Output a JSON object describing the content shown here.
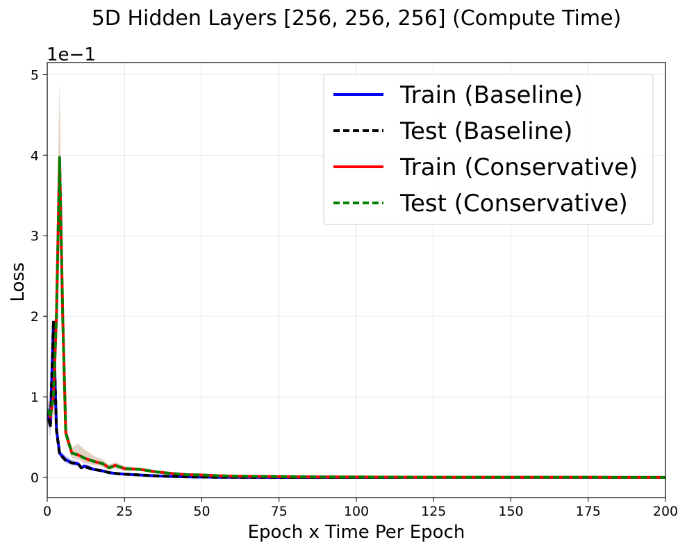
{
  "chart_data": {
    "type": "line",
    "title": "5D Hidden Layers [256, 256, 256] (Compute Time)",
    "xlabel": "Epoch x Time Per Epoch",
    "ylabel": "Loss",
    "y_multiplier_label": "1e−1",
    "xlim": [
      0,
      200
    ],
    "ylim": [
      -0.25,
      5.15
    ],
    "xticks": [
      0,
      25,
      50,
      75,
      100,
      125,
      150,
      175,
      200
    ],
    "yticks": [
      0,
      1,
      2,
      3,
      4,
      5
    ],
    "grid": true,
    "legend_position": "top-right",
    "series": [
      {
        "name": "Train (Baseline)",
        "color": "#0000ff",
        "dash": "solid",
        "x": [
          0,
          1,
          2,
          3,
          4,
          6,
          8,
          10,
          11,
          12,
          13,
          15,
          18,
          20,
          22,
          25,
          30,
          35,
          40,
          45,
          50,
          55,
          60,
          70,
          80,
          100,
          125,
          150,
          175,
          200
        ],
        "y": [
          0.85,
          0.65,
          1.9,
          0.6,
          0.3,
          0.22,
          0.18,
          0.17,
          0.12,
          0.14,
          0.13,
          0.1,
          0.08,
          0.06,
          0.05,
          0.04,
          0.03,
          0.02,
          0.012,
          0.008,
          0.005,
          0.003,
          0.002,
          0.001,
          0.0,
          0.0,
          0.0,
          0.0,
          0.0,
          0.0
        ],
        "band_upper": [
          1.0,
          0.8,
          2.0,
          0.7,
          0.34,
          0.27,
          0.22,
          0.2,
          0.15,
          0.17,
          0.16,
          0.12,
          0.1,
          0.08,
          0.07,
          0.05,
          0.04,
          0.03,
          0.02,
          0.015,
          0.01,
          0.008,
          0.006,
          0.004,
          0.003,
          0.003,
          0.003,
          0.003,
          0.003,
          0.003
        ],
        "band_lower": [
          0.7,
          0.5,
          1.8,
          0.5,
          0.26,
          0.18,
          0.15,
          0.14,
          0.1,
          0.11,
          0.1,
          0.08,
          0.06,
          0.04,
          0.03,
          0.03,
          0.02,
          0.01,
          0.005,
          0.002,
          0.0,
          0.0,
          0.0,
          0.0,
          0.0,
          0.0,
          0.0,
          0.0,
          0.0,
          0.0
        ]
      },
      {
        "name": "Test (Baseline)",
        "color": "#000000",
        "dash": "dashed",
        "x": [
          0,
          1,
          2,
          3,
          4,
          6,
          8,
          10,
          11,
          12,
          13,
          15,
          18,
          20,
          22,
          25,
          30,
          35,
          40,
          45,
          50,
          55,
          60,
          70,
          80,
          100,
          125,
          150,
          175,
          200
        ],
        "y": [
          0.85,
          0.62,
          1.95,
          0.58,
          0.29,
          0.21,
          0.18,
          0.17,
          0.12,
          0.14,
          0.12,
          0.1,
          0.08,
          0.06,
          0.05,
          0.04,
          0.03,
          0.02,
          0.012,
          0.008,
          0.005,
          0.003,
          0.002,
          0.001,
          0.0,
          0.0,
          0.0,
          0.0,
          0.0,
          0.0
        ]
      },
      {
        "name": "Train (Conservative)",
        "color": "#ff0000",
        "dash": "solid",
        "x": [
          0,
          1,
          2,
          3,
          4,
          5,
          6,
          8,
          10,
          12,
          15,
          18,
          20,
          22,
          25,
          30,
          35,
          40,
          45,
          50,
          55,
          60,
          70,
          80,
          100,
          125,
          150,
          175,
          200
        ],
        "y": [
          0.85,
          0.75,
          1.0,
          2.0,
          3.97,
          2.0,
          0.55,
          0.3,
          0.28,
          0.24,
          0.2,
          0.17,
          0.12,
          0.15,
          0.11,
          0.1,
          0.07,
          0.05,
          0.035,
          0.03,
          0.022,
          0.016,
          0.012,
          0.008,
          0.005,
          0.003,
          0.002,
          0.002,
          0.001
        ],
        "band_upper": [
          1.0,
          0.9,
          1.3,
          2.8,
          4.9,
          2.4,
          0.65,
          0.37,
          0.42,
          0.35,
          0.27,
          0.22,
          0.16,
          0.19,
          0.14,
          0.12,
          0.09,
          0.065,
          0.045,
          0.038,
          0.03,
          0.022,
          0.016,
          0.012,
          0.008,
          0.006,
          0.005,
          0.004,
          0.003
        ],
        "band_lower": [
          0.7,
          0.6,
          0.75,
          1.5,
          3.2,
          1.6,
          0.45,
          0.24,
          0.22,
          0.18,
          0.15,
          0.13,
          0.09,
          0.11,
          0.08,
          0.08,
          0.05,
          0.035,
          0.025,
          0.022,
          0.015,
          0.01,
          0.008,
          0.005,
          0.002,
          0.0,
          0.0,
          0.0,
          0.0
        ]
      },
      {
        "name": "Test (Conservative)",
        "color": "#008000",
        "dash": "dashed",
        "x": [
          0,
          1,
          2,
          3,
          4,
          5,
          6,
          8,
          10,
          12,
          15,
          18,
          20,
          22,
          25,
          30,
          35,
          40,
          45,
          50,
          55,
          60,
          70,
          80,
          100,
          125,
          150,
          175,
          200
        ],
        "y": [
          0.85,
          0.75,
          1.0,
          2.0,
          3.97,
          2.0,
          0.55,
          0.3,
          0.28,
          0.24,
          0.2,
          0.17,
          0.12,
          0.15,
          0.11,
          0.1,
          0.07,
          0.05,
          0.035,
          0.03,
          0.022,
          0.016,
          0.012,
          0.008,
          0.005,
          0.003,
          0.002,
          0.002,
          0.001
        ]
      }
    ]
  }
}
